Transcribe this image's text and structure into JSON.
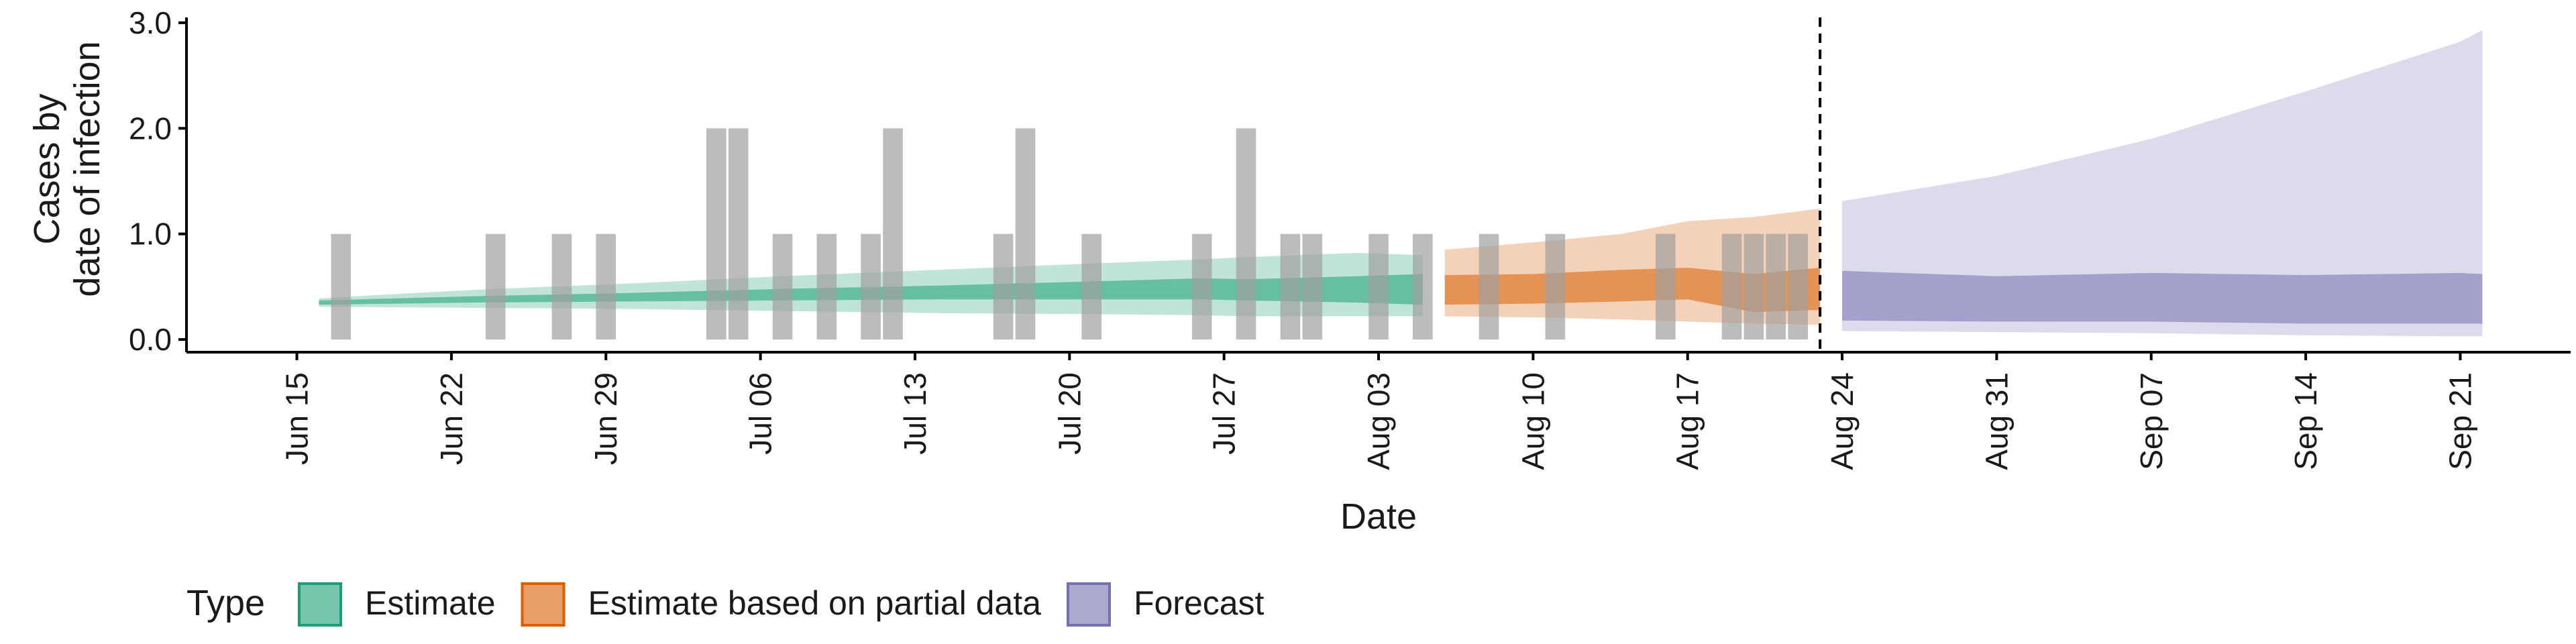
{
  "chart_data": {
    "type": "area",
    "title": "",
    "xlabel": "Date",
    "ylabel_lines": [
      "Cases by",
      "date of infection"
    ],
    "x_range": [
      "2020-06-10",
      "2020-09-26"
    ],
    "ylim": [
      -0.12,
      3.05
    ],
    "y_ticks": [
      0,
      1,
      2,
      3
    ],
    "y_tick_labels": [
      "0.0",
      "1.0",
      "2.0",
      "3.0"
    ],
    "x_ticks": [
      "2020-06-15",
      "2020-06-22",
      "2020-06-29",
      "2020-07-06",
      "2020-07-13",
      "2020-07-20",
      "2020-07-27",
      "2020-08-03",
      "2020-08-10",
      "2020-08-17",
      "2020-08-24",
      "2020-08-31",
      "2020-09-07",
      "2020-09-14",
      "2020-09-21"
    ],
    "x_tick_labels": [
      "Jun 15",
      "Jun 22",
      "Jun 29",
      "Jul 06",
      "Jul 13",
      "Jul 20",
      "Jul 27",
      "Aug 03",
      "Aug 10",
      "Aug 17",
      "Aug 24",
      "Aug 31",
      "Sep 07",
      "Sep 14",
      "Sep 21"
    ],
    "forecast_date": "2020-08-23",
    "grid": false,
    "legend": {
      "title": "Type",
      "placement": "bottom",
      "entries": [
        "Estimate",
        "Estimate based on partial data",
        "Forecast"
      ]
    },
    "colors": {
      "Estimate": "#1b9e77",
      "Estimate based on partial data": "#d95f02",
      "Forecast": "#7570b3",
      "observed": "#a0a0a0"
    },
    "observed_cases": [
      {
        "date": "2020-06-17",
        "value": 1
      },
      {
        "date": "2020-06-24",
        "value": 1
      },
      {
        "date": "2020-06-27",
        "value": 1
      },
      {
        "date": "2020-06-29",
        "value": 1
      },
      {
        "date": "2020-07-04",
        "value": 2
      },
      {
        "date": "2020-07-05",
        "value": 2
      },
      {
        "date": "2020-07-07",
        "value": 1
      },
      {
        "date": "2020-07-09",
        "value": 1
      },
      {
        "date": "2020-07-11",
        "value": 1
      },
      {
        "date": "2020-07-12",
        "value": 2
      },
      {
        "date": "2020-07-17",
        "value": 1
      },
      {
        "date": "2020-07-18",
        "value": 2
      },
      {
        "date": "2020-07-21",
        "value": 1
      },
      {
        "date": "2020-07-26",
        "value": 1
      },
      {
        "date": "2020-07-28",
        "value": 2
      },
      {
        "date": "2020-07-30",
        "value": 1
      },
      {
        "date": "2020-07-31",
        "value": 1
      },
      {
        "date": "2020-08-03",
        "value": 1
      },
      {
        "date": "2020-08-05",
        "value": 1
      },
      {
        "date": "2020-08-08",
        "value": 1
      },
      {
        "date": "2020-08-11",
        "value": 1
      },
      {
        "date": "2020-08-16",
        "value": 1
      },
      {
        "date": "2020-08-19",
        "value": 1
      },
      {
        "date": "2020-08-20",
        "value": 1
      },
      {
        "date": "2020-08-21",
        "value": 1
      },
      {
        "date": "2020-08-22",
        "value": 1
      }
    ],
    "series": [
      {
        "name": "Estimate",
        "dates": [
          "2020-06-16",
          "2020-06-23",
          "2020-06-30",
          "2020-07-07",
          "2020-07-14",
          "2020-07-21",
          "2020-07-26",
          "2020-07-28",
          "2020-08-02",
          "2020-08-05"
        ],
        "outer_lower": [
          0.31,
          0.3,
          0.29,
          0.27,
          0.25,
          0.24,
          0.23,
          0.22,
          0.22,
          0.22
        ],
        "inner_lower": [
          0.33,
          0.35,
          0.36,
          0.37,
          0.38,
          0.38,
          0.38,
          0.37,
          0.35,
          0.33
        ],
        "inner_upper": [
          0.37,
          0.41,
          0.44,
          0.48,
          0.51,
          0.55,
          0.58,
          0.57,
          0.6,
          0.62
        ],
        "outer_upper": [
          0.39,
          0.47,
          0.53,
          0.6,
          0.66,
          0.72,
          0.76,
          0.78,
          0.82,
          0.8
        ]
      },
      {
        "name": "Estimate based on partial data",
        "dates": [
          "2020-08-06",
          "2020-08-10",
          "2020-08-14",
          "2020-08-17",
          "2020-08-20",
          "2020-08-23"
        ],
        "outer_lower": [
          0.22,
          0.21,
          0.19,
          0.17,
          0.15,
          0.14
        ],
        "inner_lower": [
          0.33,
          0.34,
          0.36,
          0.38,
          0.26,
          0.28
        ],
        "inner_upper": [
          0.61,
          0.62,
          0.66,
          0.68,
          0.62,
          0.68
        ],
        "outer_upper": [
          0.85,
          0.92,
          1.0,
          1.12,
          1.16,
          1.24
        ]
      },
      {
        "name": "Forecast",
        "dates": [
          "2020-08-24",
          "2020-08-31",
          "2020-09-07",
          "2020-09-14",
          "2020-09-21",
          "2020-09-22"
        ],
        "outer_lower": [
          0.08,
          0.07,
          0.06,
          0.04,
          0.03,
          0.03
        ],
        "inner_lower": [
          0.18,
          0.17,
          0.17,
          0.15,
          0.15,
          0.15
        ],
        "inner_upper": [
          0.65,
          0.6,
          0.63,
          0.61,
          0.63,
          0.62
        ],
        "outer_upper": [
          1.31,
          1.55,
          1.9,
          2.35,
          2.82,
          2.93
        ]
      }
    ]
  }
}
